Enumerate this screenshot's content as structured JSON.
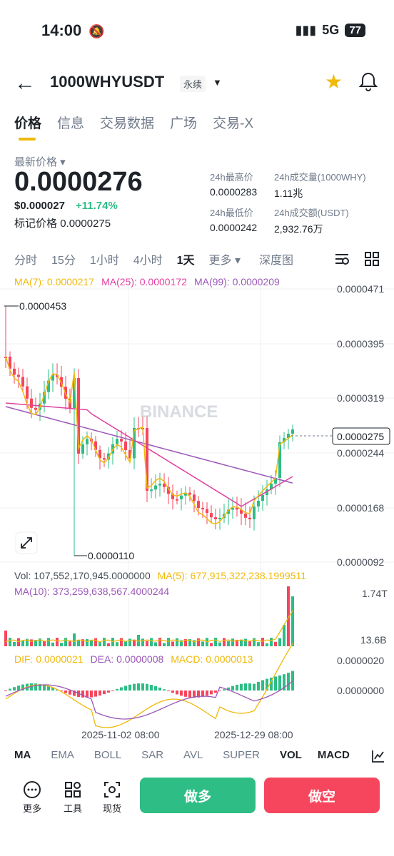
{
  "status": {
    "time": "14:00",
    "network": "5G",
    "battery": "77"
  },
  "header": {
    "symbol": "1000WHYUSDT",
    "contract": "永续"
  },
  "tabs": [
    "价格",
    "信息",
    "交易数据",
    "广场",
    "交易-X"
  ],
  "price": {
    "label": "最新价格",
    "last": "0.0000276",
    "usd": "$0.000027",
    "change": "+11.74%",
    "mark_label": "标记价格",
    "mark": "0.0000275"
  },
  "stats": {
    "high_label": "24h最高价",
    "high": "0.0000283",
    "vol_label": "24h成交量(1000WHY)",
    "vol": "1.11兆",
    "low_label": "24h最低价",
    "low": "0.0000242",
    "turnover_label": "24h成交额(USDT)",
    "turnover": "2,932.76万"
  },
  "intervals": [
    "分时",
    "15分",
    "1小时",
    "4小时",
    "1天",
    "更多",
    "深度图"
  ],
  "selected_interval": "1天",
  "ma": {
    "ma7": "MA(7): 0.0000217",
    "ma25": "MA(25): 0.0000172",
    "ma99": "MA(99): 0.0000209"
  },
  "axis": {
    "p1": "0.0000471",
    "p2": "0.0000395",
    "p3": "0.0000319",
    "p4": "0.0000244",
    "p5": "0.0000168",
    "p6": "0.0000092",
    "current": "0.0000275",
    "hi_mark": "0.0000453",
    "lo_mark": "0.0000110"
  },
  "watermark": "BINANCE",
  "volume": {
    "vol": "Vol: 107,552,170,945.0000000",
    "ma5": "MA(5): 677,915,322,238.1999511",
    "ma10": "MA(10): 373,259,638,567.4000244",
    "axis_hi": "1.74T",
    "axis_lo": "13.6B"
  },
  "macd": {
    "dif": "DIF: 0.0000021",
    "dea": "DEA: 0.0000008",
    "macd": "MACD: 0.0000013",
    "axis_hi": "0.0000020",
    "axis_lo": "0.0000000"
  },
  "dates": [
    "2025-11-02 08:00",
    "2025-12-29 08:00"
  ],
  "indicators": [
    "MA",
    "EMA",
    "BOLL",
    "SAR",
    "AVL",
    "SUPER",
    "VOL",
    "MACD"
  ],
  "bottom": {
    "more": "更多",
    "tools": "工具",
    "spot": "现货",
    "long": "做多",
    "short": "做空"
  },
  "colors": {
    "up": "#2ebd85",
    "down": "#f6465d",
    "accent": "#f0b90b",
    "ma7": "#f0b90b",
    "ma25": "#e040a0",
    "ma99": "#9b57b8"
  }
}
